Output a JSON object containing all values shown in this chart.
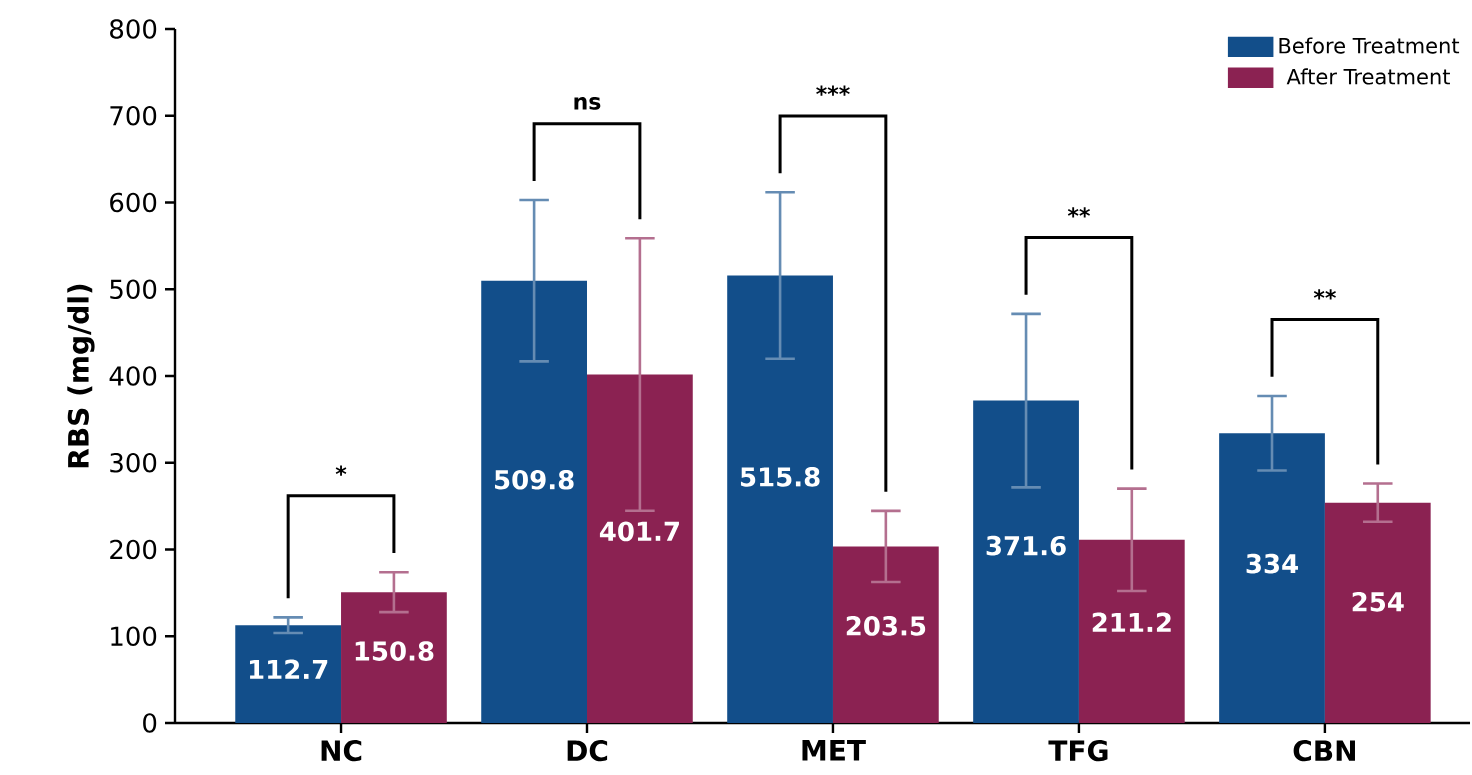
{
  "chart_data": {
    "type": "bar",
    "ylabel": "RBS (mg/dl)",
    "categories": [
      "NC",
      "DC",
      "MET",
      "TFG",
      "CBN"
    ],
    "series": [
      {
        "name": "Before Treatment",
        "color": "#124e8a",
        "values": [
          112.7,
          509.8,
          515.8,
          371.6,
          334
        ],
        "errors": [
          9,
          93,
          96,
          100,
          43
        ]
      },
      {
        "name": "After Treatment",
        "color": "#8b2252",
        "values": [
          150.8,
          401.7,
          203.5,
          211.2,
          254
        ],
        "errors": [
          23,
          157,
          41,
          59,
          22
        ]
      }
    ],
    "annotations": [
      "*",
      "ns",
      "***",
      "**",
      "**"
    ],
    "ylim": [
      0,
      800
    ],
    "yticks": [
      0,
      100,
      200,
      300,
      400,
      500,
      600,
      700,
      800
    ],
    "data_labels": true,
    "legend": "top right",
    "grid": false
  }
}
